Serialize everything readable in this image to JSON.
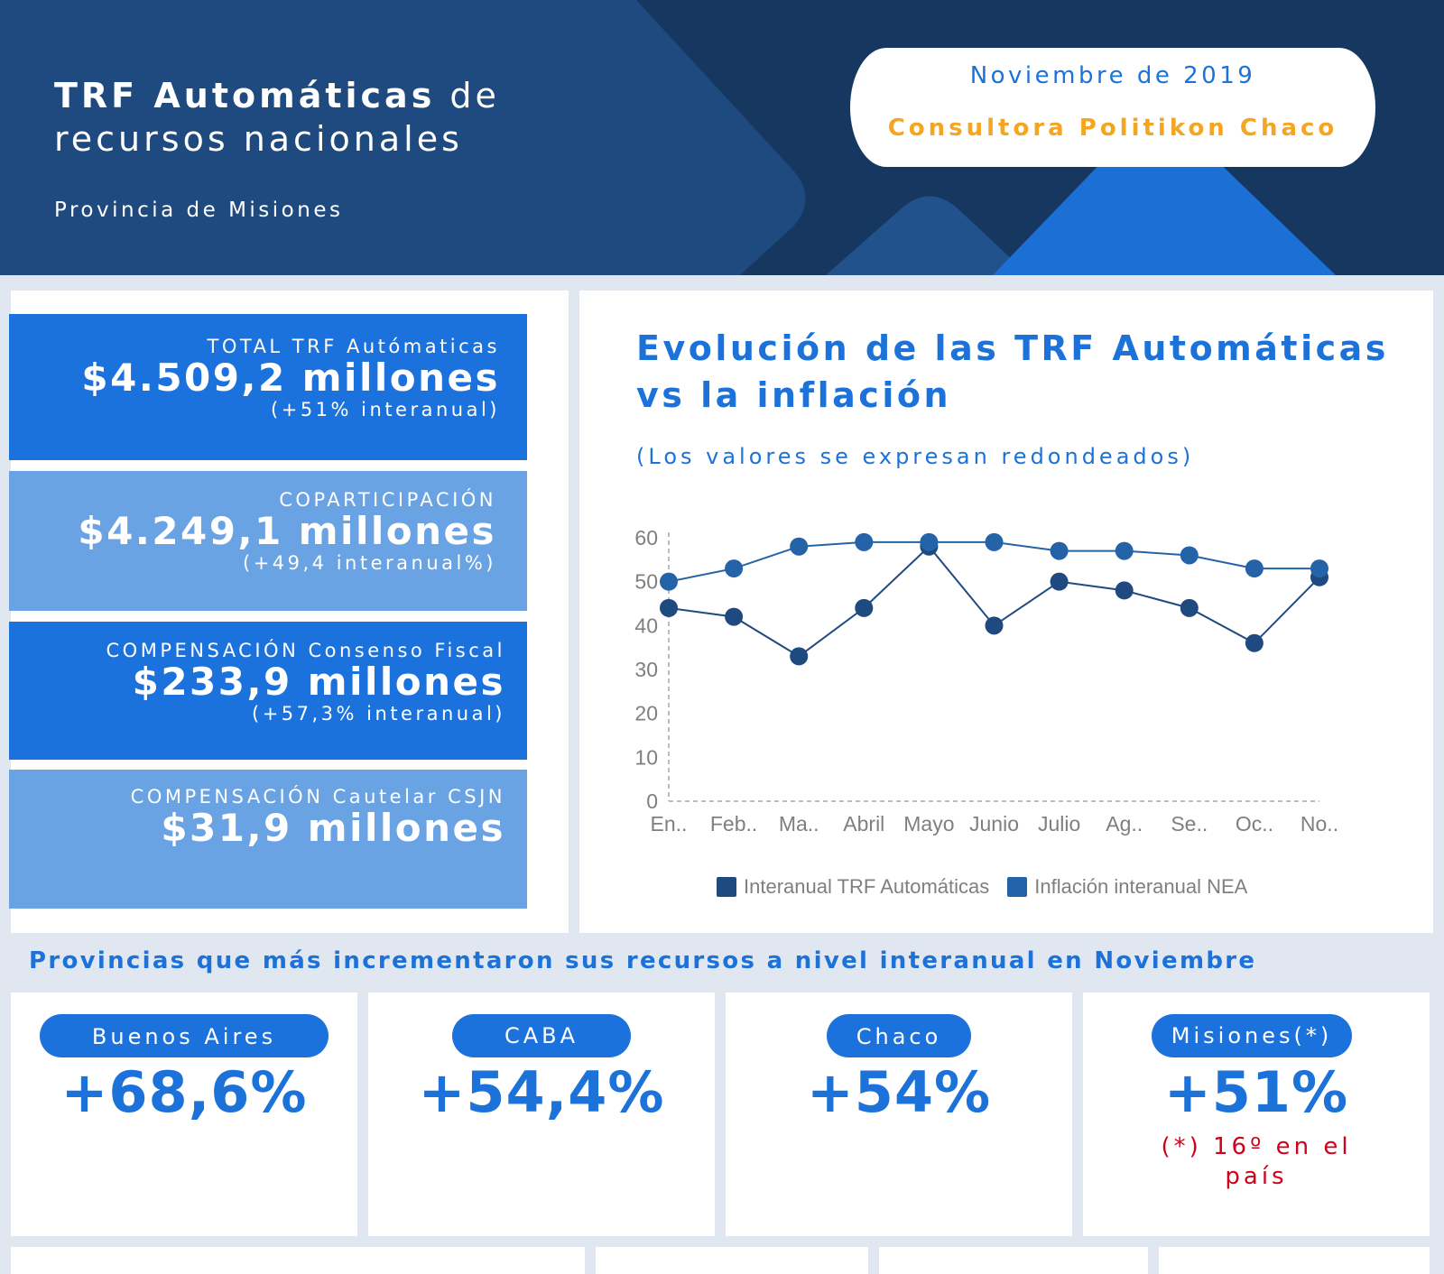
{
  "header": {
    "title_bold": "TRF Automáticas",
    "title_rest": " de",
    "title_line2": "recursos nacionales",
    "subtitle": "Provincia de Misiones",
    "date": "Noviembre de 2019",
    "firm": "Consultora Politikon Chaco"
  },
  "stats": [
    {
      "label": "TOTAL TRF Autómaticas",
      "value": "$4.509,2 millones",
      "delta": "(+51% interanual)"
    },
    {
      "label": "COPARTICIPACIÓN",
      "value": "$4.249,1 millones",
      "delta": "(+49,4 interanual%)"
    },
    {
      "label": "COMPENSACIÓN Consenso Fiscal",
      "value": "$233,9 millones",
      "delta": "(+57,3% interanual)"
    },
    {
      "label": "COMPENSACIÓN Cautelar CSJN",
      "value": "$31,9 millones",
      "delta": ""
    }
  ],
  "chart_panel": {
    "title": "Evolución de las TRF Automáticas vs la inflación",
    "subtitle": "(Los valores se expresan redondeados)"
  },
  "chart_data": {
    "type": "line",
    "title": "Evolución de las TRF Automáticas vs la inflación",
    "subtitle": "(Los valores se expresan redondeados)",
    "categories": [
      "En..",
      "Feb..",
      "Ma..",
      "Abril",
      "Mayo",
      "Junio",
      "Julio",
      "Ag..",
      "Se..",
      "Oc..",
      "No.."
    ],
    "series": [
      {
        "name": "Interanual TRF Automáticas",
        "color": "#1e4a80",
        "values": [
          44,
          42,
          33,
          44,
          58,
          40,
          50,
          48,
          44,
          36,
          51
        ]
      },
      {
        "name": "Inflación interanual NEA",
        "color": "#2563a8",
        "values": [
          50,
          53,
          58,
          59,
          59,
          59,
          57,
          57,
          56,
          53,
          53
        ]
      }
    ],
    "yticks": [
      0,
      10,
      20,
      30,
      40,
      50,
      60
    ],
    "ylim": [
      0,
      60
    ],
    "xlabel": "",
    "ylabel": "",
    "grid": false,
    "legend": "bottom"
  },
  "provinces_section": {
    "heading": "Provincias que más incrementaron sus recursos a nivel interanual en Noviembre",
    "cards": [
      {
        "name": "Buenos Aires",
        "value": "+68,6%",
        "note": ""
      },
      {
        "name": "CABA",
        "value": "+54,4%",
        "note": ""
      },
      {
        "name": "Chaco",
        "value": "+54%",
        "note": ""
      },
      {
        "name": "Misiones(*)",
        "value": "+51%",
        "note": "(*) 16º en el país"
      }
    ]
  }
}
